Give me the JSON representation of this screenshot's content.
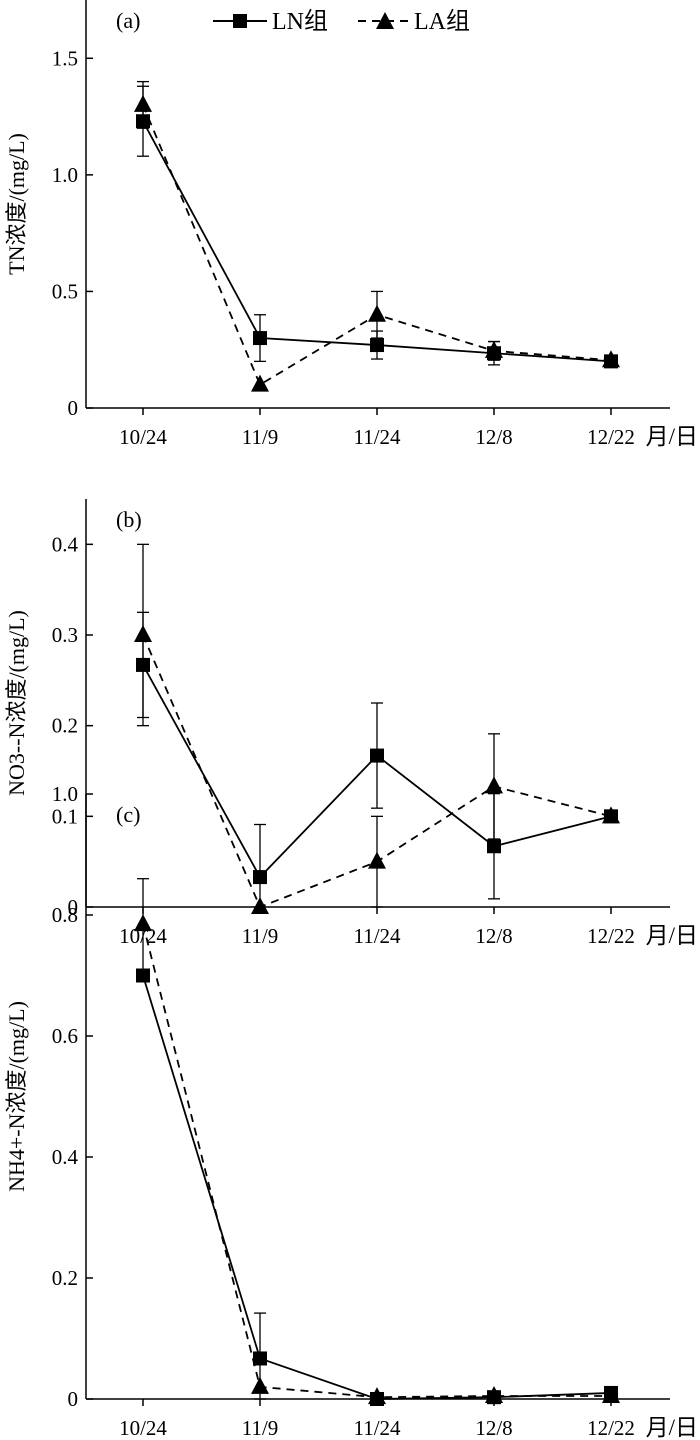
{
  "legend": {
    "ln_label": "LN组",
    "la_label": "LA组"
  },
  "chart_data": [
    {
      "type": "line",
      "panel": "(a)",
      "ylabel": "TN浓度/(mg/L)",
      "xlabel": "月/日",
      "categories": [
        "10/24",
        "11/9",
        "11/24",
        "12/8",
        "12/22"
      ],
      "ylim": [
        0,
        1.75
      ],
      "yticks": [
        0,
        0.5,
        1.0,
        1.5
      ],
      "ytick_labels": [
        "0",
        "0.5",
        "1.0",
        "1.5"
      ],
      "series": [
        {
          "name": "LN组",
          "marker": "square",
          "line": "solid",
          "values": [
            1.23,
            0.3,
            0.27,
            0.235,
            0.2
          ],
          "errors": [
            0.15,
            0.1,
            0.06,
            0.05,
            0.02
          ]
        },
        {
          "name": "LA组",
          "marker": "triangle",
          "line": "dashed",
          "values": [
            1.3,
            0.1,
            0.4,
            0.245,
            0.205
          ],
          "errors": [
            0.1,
            0.0,
            0.1,
            0.04,
            0.02
          ]
        }
      ]
    },
    {
      "type": "line",
      "panel": "(b)",
      "ylabel": "NO3--N浓度/(mg/L)",
      "xlabel": "月/日",
      "categories": [
        "10/24",
        "11/9",
        "11/24",
        "12/8",
        "12/22"
      ],
      "ylim": [
        0,
        0.45
      ],
      "yticks": [
        0,
        0.1,
        0.2,
        0.3,
        0.4
      ],
      "ytick_labels": [
        "0",
        "0.1",
        "0.2",
        "0.3",
        "0.4"
      ],
      "series": [
        {
          "name": "LN组",
          "marker": "square",
          "line": "solid",
          "values": [
            0.267,
            0.033,
            0.167,
            0.067,
            0.1
          ],
          "errors": [
            0.058,
            0.058,
            0.058,
            0.058,
            0.0
          ]
        },
        {
          "name": "LA组",
          "marker": "triangle",
          "line": "dashed",
          "values": [
            0.3,
            0.0,
            0.05,
            0.133,
            0.1
          ],
          "errors": [
            0.1,
            0.0,
            0.05,
            0.058,
            0.0
          ]
        }
      ]
    },
    {
      "type": "line",
      "panel": "(c)",
      "ylabel": "NH4+-N浓度/(mg/L)",
      "xlabel": "月/日",
      "categories": [
        "10/24",
        "11/9",
        "11/24",
        "12/8",
        "12/22"
      ],
      "ylim": [
        0,
        1.0
      ],
      "yticks": [
        0,
        0.2,
        0.4,
        0.6,
        0.8,
        1.0
      ],
      "ytick_labels": [
        "0",
        "0.2",
        "0.4",
        "0.6",
        "0.8",
        "1.0"
      ],
      "series": [
        {
          "name": "LN组",
          "marker": "square",
          "line": "solid",
          "values": [
            0.7,
            0.067,
            0.0,
            0.003,
            0.01
          ],
          "errors": [
            0.0,
            0.075,
            0.0,
            0.0,
            0.0
          ]
        },
        {
          "name": "LA组",
          "marker": "triangle",
          "line": "dashed",
          "values": [
            0.785,
            0.02,
            0.003,
            0.005,
            0.005
          ],
          "errors": [
            0.075,
            0.0,
            0.0,
            0.0,
            0.0
          ]
        }
      ]
    }
  ]
}
